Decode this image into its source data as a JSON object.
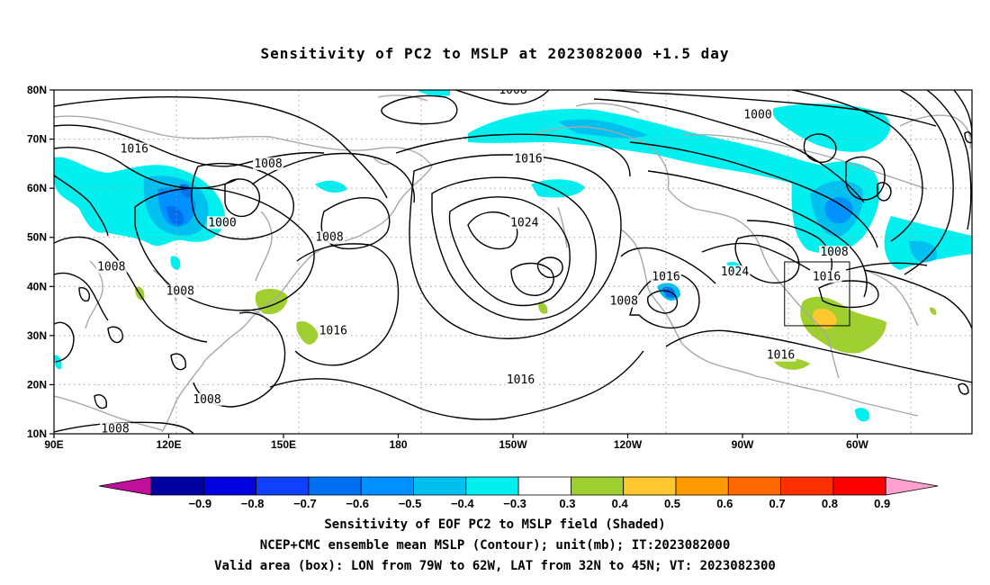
{
  "title": "Sensitivity of PC2 to MSLP at 2023082000 +1.5 day",
  "map": {
    "lat_ticks": [
      "80N",
      "70N",
      "60N",
      "50N",
      "40N",
      "30N",
      "20N",
      "10N"
    ],
    "lon_ticks": [
      "90E",
      "120E",
      "150E",
      "180",
      "150W",
      "120W",
      "90W",
      "60W"
    ],
    "contour_labels": [
      {
        "text": "1008",
        "lon": -150,
        "lat": 80
      },
      {
        "text": "1000",
        "lon": -86,
        "lat": 75
      },
      {
        "text": "1016",
        "lon": 111,
        "lat": 68
      },
      {
        "text": "1008",
        "lon": 146,
        "lat": 65
      },
      {
        "text": "1016",
        "lon": -146,
        "lat": 66
      },
      {
        "text": "1000",
        "lon": 134,
        "lat": 53
      },
      {
        "text": "1024",
        "lon": -147,
        "lat": 53
      },
      {
        "text": "1008",
        "lon": 162,
        "lat": 50
      },
      {
        "text": "1008",
        "lon": -66,
        "lat": 47
      },
      {
        "text": "1008",
        "lon": 105,
        "lat": 44
      },
      {
        "text": "1016",
        "lon": -110,
        "lat": 42
      },
      {
        "text": "1024",
        "lon": -92,
        "lat": 43
      },
      {
        "text": "1016",
        "lon": -68,
        "lat": 42
      },
      {
        "text": "1008",
        "lon": 123,
        "lat": 39
      },
      {
        "text": "1008",
        "lon": -121,
        "lat": 37
      },
      {
        "text": "1016",
        "lon": 163,
        "lat": 31
      },
      {
        "text": "1016",
        "lon": -80,
        "lat": 26
      },
      {
        "text": "1016",
        "lon": -148,
        "lat": 21
      },
      {
        "text": "1008",
        "lon": 130,
        "lat": 17
      },
      {
        "text": "1008",
        "lon": 106,
        "lat": 11
      }
    ],
    "valid_box": {
      "lon_west": -79,
      "lon_east": -62,
      "lat_south": 32,
      "lat_north": 45
    }
  },
  "colorbar": {
    "labels": [
      "-0.9",
      "-0.8",
      "-0.7",
      "-0.6",
      "-0.5",
      "-0.4",
      "-0.3",
      "0.3",
      "0.4",
      "0.5",
      "0.6",
      "0.7",
      "0.8",
      "0.9"
    ],
    "colors": [
      "#0000a0",
      "#0000e0",
      "#1040ff",
      "#0070f0",
      "#0090ff",
      "#00c0f0",
      "#00f0f0",
      "#ffffff",
      "#a0d030",
      "#ffc830",
      "#ff9a00",
      "#ff6a00",
      "#ff3000",
      "#ff0000"
    ],
    "low_end_color": "#c0109a",
    "high_end_color": "#ffa0d0"
  },
  "captions": {
    "line1": "Sensitivity of EOF PC2 to MSLP field (Shaded)",
    "line2": "NCEP+CMC ensemble mean MSLP (Contour); unit(mb); IT:2023082000",
    "line3": "Valid area (box): LON from 79W to 62W, LAT from 32N to 45N; VT: 2023082300"
  }
}
